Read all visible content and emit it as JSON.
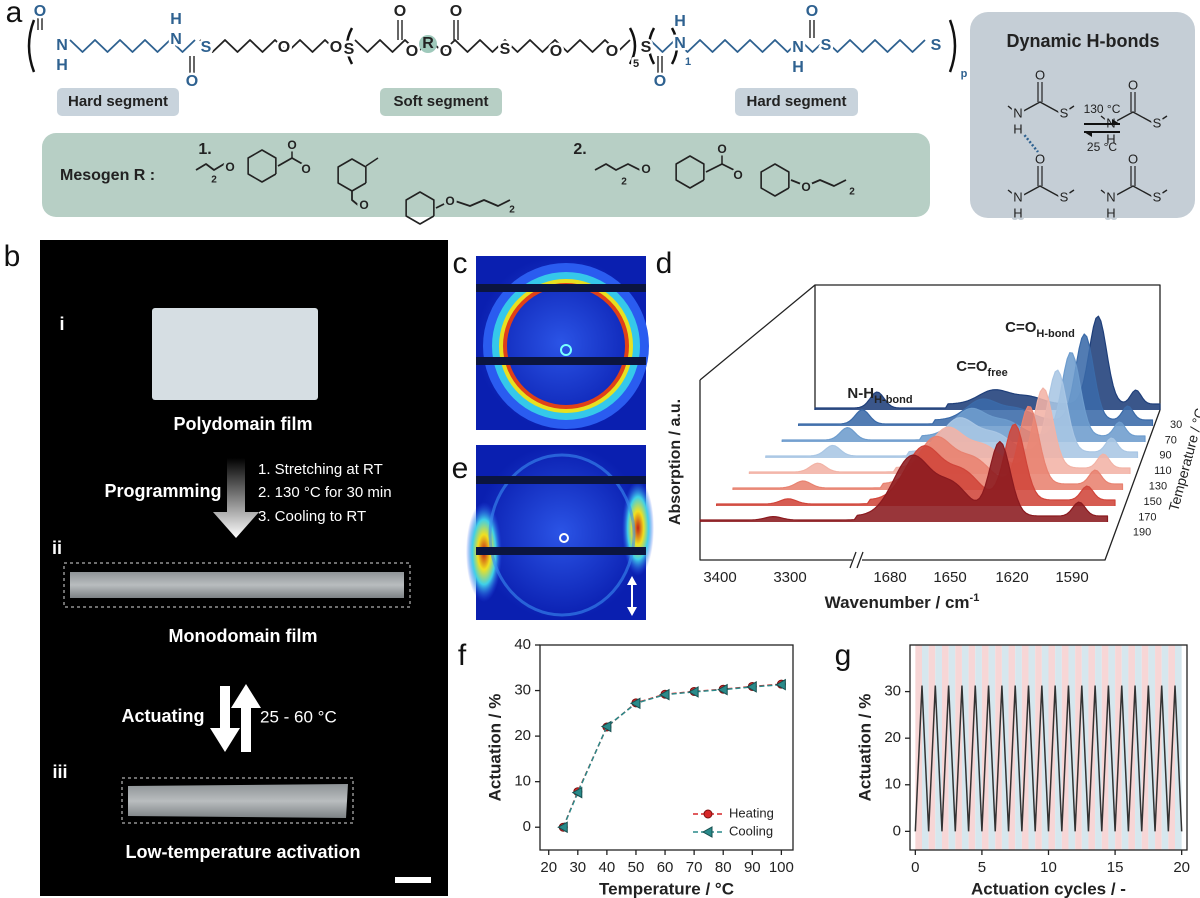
{
  "panel_labels": [
    "a",
    "b",
    "c",
    "d",
    "e",
    "f",
    "g"
  ],
  "panel_a": {
    "atoms": [
      "O",
      "N",
      "H",
      "H",
      "N",
      "O",
      "S",
      "O",
      "O",
      "S",
      "O",
      "O",
      "R",
      "O",
      "O",
      "S",
      "O",
      "O",
      "5",
      "S",
      "O",
      "N",
      "H",
      "1",
      "H",
      "N",
      "O",
      "S",
      "S",
      "p"
    ],
    "segments": [
      "Hard segment",
      "Soft segment",
      "Hard segment"
    ],
    "mesogen_label": "Mesogen R :",
    "mesogen_items": [
      "1.",
      "2."
    ],
    "mesogen_atoms": [
      "O",
      "O",
      "O",
      "O",
      "O",
      "2",
      "2",
      "O",
      "O",
      "O",
      "O",
      "2",
      "2"
    ],
    "hbond_title": "Dynamic H-bonds",
    "hbond_atoms": [
      "O",
      "N",
      "H",
      "S",
      "O",
      "N",
      "H",
      "S",
      "O",
      "N",
      "H",
      "S",
      "O",
      "N",
      "H",
      "S"
    ],
    "hbond_forward": "130 °C",
    "hbond_back": "25 °C"
  },
  "panel_b": {
    "roman": [
      "i",
      "ii",
      "iii"
    ],
    "film_1": "Polydomain film",
    "programming": "Programming",
    "steps": [
      "1. Stretching at RT",
      "2. 130 °C for 30 min",
      "3. Cooling to RT"
    ],
    "film_2": "Monodomain film",
    "actuating": "Actuating",
    "temp_range": "25 - 60 °C",
    "film_3": "Low-temperature activation"
  },
  "panel_d": {
    "ylabel": "Absorption / a.u.",
    "xlabel": {
      "main": "Wavenumber / cm",
      "sup": "-1"
    },
    "xticks": [
      3400,
      3300,
      1680,
      1650,
      1620,
      1590
    ],
    "zlabel": "Temperature / °C",
    "temperatures": [
      30,
      70,
      90,
      110,
      130,
      150,
      170,
      190
    ],
    "peaks": [
      {
        "main": "N-H",
        "sub": "H-bond"
      },
      {
        "main": "C=O",
        "sub": "free"
      },
      {
        "main": "C=O",
        "sub": "H-bond"
      }
    ]
  },
  "chart_data": [
    {
      "type": "line",
      "x": [
        25,
        30,
        40,
        50,
        60,
        70,
        80,
        90,
        100
      ],
      "series": [
        {
          "name": "Heating",
          "color": "#d62728",
          "marker": "circle",
          "linestyle": "dashed",
          "values": [
            0,
            7.8,
            22,
            27.3,
            29.2,
            29.8,
            30.3,
            30.9,
            31.4
          ]
        },
        {
          "name": "Cooling",
          "color": "#2a8a8a",
          "marker": "triangle",
          "linestyle": "dashed",
          "values": [
            0,
            7.6,
            22.1,
            27.2,
            29.1,
            29.7,
            30.2,
            30.8,
            31.3
          ]
        }
      ],
      "xlabel": "Temperature / °C",
      "ylabel": "Actuation / %",
      "xlim": [
        17,
        104
      ],
      "ylim": [
        -5,
        40
      ],
      "xticks": [
        20,
        30,
        40,
        50,
        60,
        70,
        80,
        90,
        100
      ],
      "yticks": [
        0,
        10,
        20,
        30,
        40
      ],
      "legend": "lower right"
    },
    {
      "type": "line",
      "x": [
        0,
        0.5,
        1,
        1.5,
        2,
        2.5,
        3,
        3.5,
        4,
        4.5,
        5,
        5.5,
        6,
        6.5,
        7,
        7.5,
        8,
        8.5,
        9,
        9.5,
        10,
        10.5,
        11,
        11.5,
        12,
        12.5,
        13,
        13.5,
        14,
        14.5,
        15,
        15.5,
        16,
        16.5,
        17,
        17.5,
        18,
        18.5,
        19,
        19.5,
        20
      ],
      "series": [
        {
          "color": "#333333",
          "linestyle": "solid",
          "values": [
            0,
            31.3,
            0,
            31.3,
            0,
            31.3,
            0,
            31.3,
            0,
            31.3,
            0,
            31.3,
            0,
            31.3,
            0,
            31.3,
            0,
            31.3,
            0,
            31.3,
            0,
            31.3,
            0,
            31.3,
            0,
            31.3,
            0,
            31.3,
            0,
            31.3,
            0,
            31.3,
            0,
            31.3,
            0,
            31.3,
            0,
            31.3,
            0,
            31.3,
            0
          ]
        }
      ],
      "background_colors": [
        "#f7d6d6",
        "#d6e7ee"
      ],
      "xlabel": "Actuation cycles / -",
      "ylabel": "Actuation / %",
      "xlim": [
        -0.4,
        20.4
      ],
      "ylim": [
        -4,
        40
      ],
      "xticks": [
        0,
        5,
        10,
        15,
        20
      ],
      "yticks": [
        0,
        10,
        20,
        30
      ]
    }
  ]
}
